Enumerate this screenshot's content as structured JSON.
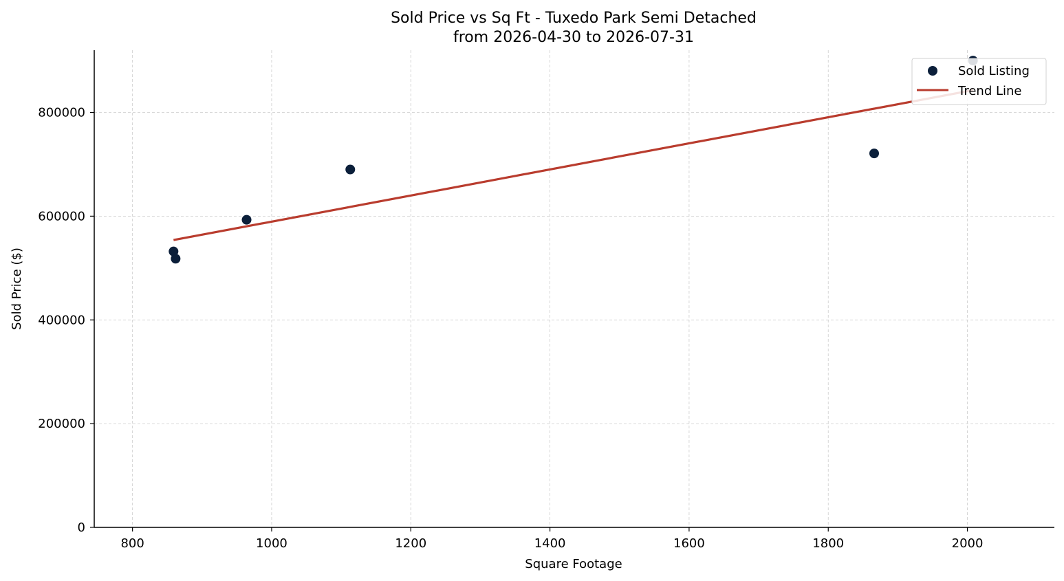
{
  "chart_data": {
    "type": "scatter",
    "title": "Sold Price vs Sq Ft - Tuxedo Park Semi Detached",
    "subtitle": "from 2026-04-30 to 2026-07-31",
    "xlabel": "Square Footage",
    "ylabel": "Sold Price ($)",
    "xlim": [
      745,
      2125
    ],
    "ylim": [
      0,
      920000
    ],
    "xticks": [
      800,
      1000,
      1200,
      1400,
      1600,
      1800,
      2000
    ],
    "yticks": [
      0,
      200000,
      400000,
      600000,
      800000
    ],
    "grid": true,
    "legend_position": "top-right",
    "series": [
      {
        "name": "Sold Listing",
        "kind": "scatter",
        "color": "#0b1f3a",
        "points": [
          {
            "x": 859,
            "y": 532000
          },
          {
            "x": 862,
            "y": 518000
          },
          {
            "x": 964,
            "y": 593000
          },
          {
            "x": 1113,
            "y": 690000
          },
          {
            "x": 1866,
            "y": 721000
          },
          {
            "x": 2008,
            "y": 900000
          }
        ]
      },
      {
        "name": "Trend Line",
        "kind": "line",
        "color": "#b93c2e",
        "points": [
          {
            "x": 859,
            "y": 554000
          },
          {
            "x": 2008,
            "y": 843000
          }
        ]
      }
    ]
  }
}
